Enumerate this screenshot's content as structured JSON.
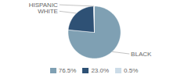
{
  "chart_data": {
    "type": "pie",
    "categories": [
      "BLACK",
      "WHITE",
      "HISPANIC"
    ],
    "values": [
      76.5,
      23.0,
      0.5
    ],
    "value_labels": [
      "76.5%",
      "23.0%",
      "0.5%"
    ],
    "colors": [
      "#7fa0b3",
      "#2e5175",
      "#ccdce8"
    ],
    "legend": "bottom"
  }
}
